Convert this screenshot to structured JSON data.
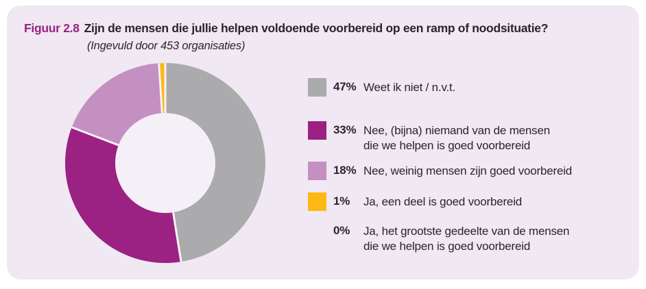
{
  "panel": {
    "figure_label": "Figuur 2.8",
    "title": "Zijn de mensen die jullie helpen voldoende voorbereid op een ramp of noodsituatie?",
    "subtitle": "(Ingevuld door 453 organisaties)"
  },
  "colors": {
    "accent": "#9b2183",
    "panel_bg": "#f0e8f2",
    "text": "#2b252a",
    "hole": "#f5eff7",
    "separator": "#f8f2f8"
  },
  "chart_data": {
    "type": "pie",
    "subtype": "donut",
    "title": "Zijn de mensen die jullie helpen voldoende voorbereid op een ramp of noodsituatie?",
    "subtitle": "(Ingevuld door 453 organisaties)",
    "unit": "%",
    "start_angle_deg": 0,
    "direction": "clockwise",
    "legend_position": "right",
    "categories": [
      "Weet ik niet / n.v.t.",
      "Nee, (bijna) niemand van de mensen die we helpen is goed voorbereid",
      "Nee, weinig mensen zijn goed voorbereid",
      "Ja, een deel is goed voorbereid",
      "Ja, het grootste gedeelte van de mensen die we helpen is goed voorbereid"
    ],
    "values": [
      47,
      33,
      18,
      1,
      0
    ],
    "colors": [
      "#ababad",
      "#9b2183",
      "#c48fc1",
      "#fdb813",
      null
    ],
    "legend": [
      {
        "pct": "47%",
        "label": "Weet ik niet / n.v.t.",
        "color": "#ababad"
      },
      {
        "pct": "33%",
        "label": "Nee, (bijna) niemand van de mensen\ndie we helpen is goed voorbereid",
        "color": "#9b2183"
      },
      {
        "pct": "18%",
        "label": "Nee, weinig mensen zijn goed voorbereid",
        "color": "#c48fc1"
      },
      {
        "pct": "1%",
        "label": "Ja, een deel is goed voorbereid",
        "color": "#fdb813"
      },
      {
        "pct": "0%",
        "label": "Ja, het grootste gedeelte van de mensen\ndie we helpen is goed voorbereid",
        "color": null
      }
    ]
  }
}
